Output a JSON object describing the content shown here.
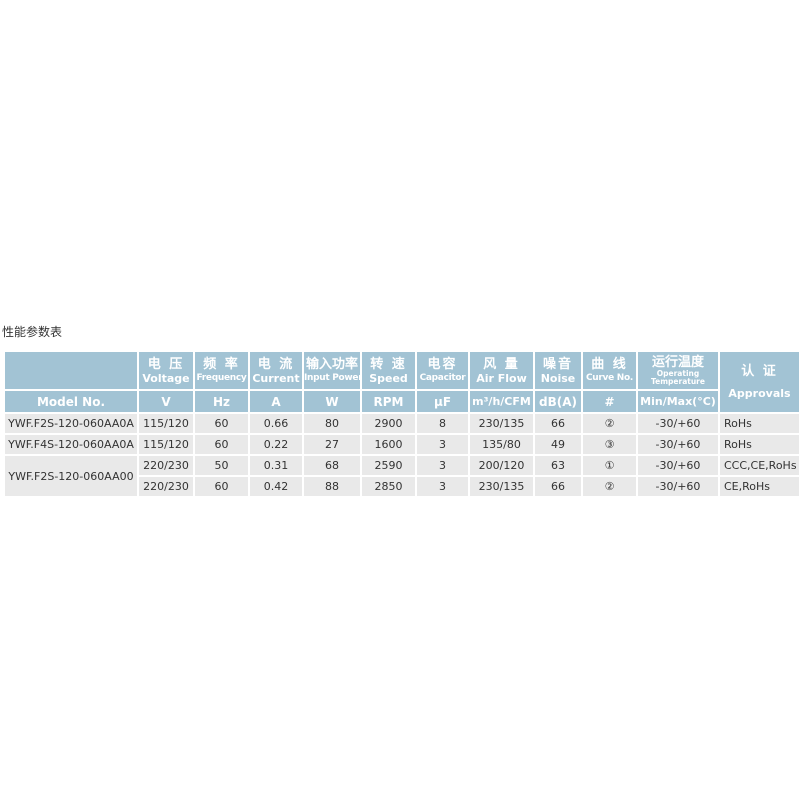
{
  "title": "性能参数表",
  "columns": [
    {
      "cn": "",
      "en": "",
      "unit": "Model No."
    },
    {
      "cn": "电 压",
      "en": "Voltage",
      "unit": "V"
    },
    {
      "cn": "频 率",
      "en": "Frequency",
      "unit": "Hz"
    },
    {
      "cn": "电 流",
      "en": "Current",
      "unit": "A"
    },
    {
      "cn": "输入功率",
      "en": "Input Power",
      "unit": "W"
    },
    {
      "cn": "转 速",
      "en": "Speed",
      "unit": "RPM"
    },
    {
      "cn": "电容",
      "en": "Capacitor",
      "unit": "μF"
    },
    {
      "cn": "风 量",
      "en": "Air Flow",
      "unit": "m³/h/CFM"
    },
    {
      "cn": "噪音",
      "en": "Noise",
      "unit": "dB(A)"
    },
    {
      "cn": "曲 线",
      "en": "Curve No.",
      "unit": "#"
    },
    {
      "cn": "运行温度",
      "en": "Operating Temperature",
      "unit": "Min/Max(°C)"
    },
    {
      "cn": "认 证",
      "en": "Approvals",
      "unit": ""
    }
  ],
  "models": [
    "YWF.F2S-120-060AA0A",
    "YWF.F4S-120-060AA0A",
    "YWF.F2S-120-060AA00"
  ],
  "rows": [
    [
      "115/120",
      "60",
      "0.66",
      "80",
      "2900",
      "8",
      "230/135",
      "66",
      "②",
      "-30/+60",
      "RoHs"
    ],
    [
      "115/120",
      "60",
      "0.22",
      "27",
      "1600",
      "3",
      "135/80",
      "49",
      "③",
      "-30/+60",
      "RoHs"
    ],
    [
      "220/230",
      "50",
      "0.31",
      "68",
      "2590",
      "3",
      "200/120",
      "63",
      "①",
      "-30/+60",
      "CCC,CE,RoHs"
    ],
    [
      "220/230",
      "60",
      "0.42",
      "88",
      "2850",
      "3",
      "230/135",
      "66",
      "②",
      "-30/+60",
      "CE,RoHs"
    ]
  ]
}
